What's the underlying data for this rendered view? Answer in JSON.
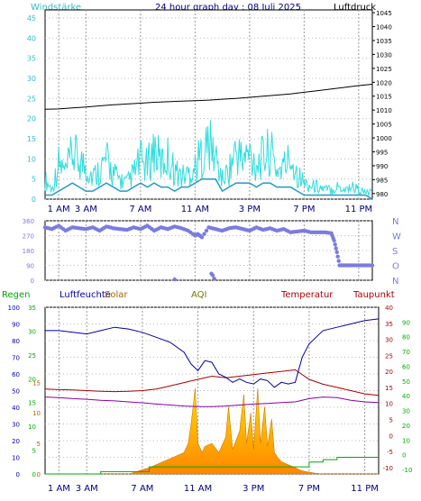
{
  "title": "24 hour graph day : 08 Juli 2025",
  "chart_data": [
    {
      "id": "wind_pressure",
      "type": "line",
      "title": "24 hour graph day : 08 Juli 2025",
      "left_axis_label": "Windstärke",
      "right_axis_label": "Luftdruck",
      "left_ticks": [
        "0",
        "5",
        "10",
        "15",
        "20",
        "25",
        "30",
        "35",
        "40",
        "45"
      ],
      "left_range": [
        0,
        47
      ],
      "right_ticks": [
        "980",
        "985",
        "990",
        "995",
        "1000",
        "1005",
        "1010",
        "1015",
        "1020",
        "1025",
        "1030",
        "1035",
        "1040",
        "1045"
      ],
      "right_range": [
        978,
        1046
      ],
      "x_hours": [
        1,
        3,
        7,
        11,
        15,
        19,
        23
      ],
      "x_ticks": [
        "1 AM",
        "3 AM",
        "7 AM",
        "11 AM",
        "3 PM",
        "7 PM",
        "11 PM"
      ],
      "x_range": [
        0,
        24
      ],
      "colors": {
        "pressure": "#000000",
        "gust": "#33dddd",
        "wind": "#2299cc"
      },
      "series": [
        {
          "key": "pressure",
          "x": [
            0,
            1,
            2,
            3,
            4,
            5,
            6,
            7,
            8,
            9,
            10,
            11,
            12,
            13,
            14,
            15,
            16,
            17,
            18,
            19,
            20,
            21,
            22,
            23,
            24
          ],
          "y": [
            1010.3,
            1010.4,
            1010.8,
            1011.1,
            1011.5,
            1011.9,
            1012.2,
            1012.5,
            1012.8,
            1013.0,
            1013.2,
            1013.4,
            1013.6,
            1013.9,
            1014.2,
            1014.6,
            1015.0,
            1015.4,
            1015.8,
            1016.4,
            1017.0,
            1017.6,
            1018.2,
            1018.8,
            1019.3
          ]
        },
        {
          "key": "gust",
          "x": [
            0,
            0.5,
            1,
            1.5,
            2,
            2.5,
            3,
            3.5,
            4,
            4.5,
            5,
            5.5,
            6,
            6.5,
            7,
            7.5,
            8,
            8.5,
            9,
            9.5,
            10,
            10.5,
            11,
            11.5,
            12,
            12.5,
            13,
            13.5,
            14,
            14.5,
            15,
            15.5,
            16,
            16.5,
            17,
            17.5,
            18,
            18.5,
            19,
            19.5,
            20,
            20.5,
            21,
            21.5,
            22,
            22.5,
            23,
            23.5,
            24
          ],
          "y": [
            6,
            3,
            11,
            8,
            14,
            12,
            10,
            7,
            9,
            12,
            8,
            6,
            5,
            8,
            12,
            10,
            16,
            11,
            13,
            9,
            7,
            8,
            10,
            14,
            17,
            13,
            6,
            9,
            15,
            12,
            14,
            11,
            13,
            15,
            9,
            10,
            13,
            8,
            5,
            4,
            4,
            3,
            3,
            4,
            3,
            4,
            3,
            2,
            2
          ]
        },
        {
          "key": "wind",
          "x": [
            0,
            0.5,
            1,
            1.5,
            2,
            2.5,
            3,
            3.5,
            4,
            4.5,
            5,
            5.5,
            6,
            6.5,
            7,
            7.5,
            8,
            8.5,
            9,
            9.5,
            10,
            10.5,
            11,
            11.5,
            12,
            12.5,
            13,
            13.5,
            14,
            14.5,
            15,
            15.5,
            16,
            16.5,
            17,
            17.5,
            18,
            18.5,
            19,
            19.5,
            20,
            20.5,
            21,
            21.5,
            22,
            22.5,
            23,
            23.5,
            24
          ],
          "y": [
            1,
            1,
            2,
            3,
            4,
            3,
            2,
            2,
            3,
            4,
            3,
            2,
            2,
            3,
            4,
            3,
            4,
            3,
            3,
            2,
            3,
            3,
            4,
            5,
            5,
            5,
            2,
            3,
            4,
            4,
            4,
            3,
            4,
            4,
            3,
            3,
            3,
            2,
            1,
            1,
            1,
            1,
            1,
            1,
            1,
            1,
            1,
            1,
            0
          ]
        }
      ]
    },
    {
      "id": "wind_direction",
      "type": "scatter",
      "left_ticks": [
        "0",
        "90",
        "180",
        "270",
        "360"
      ],
      "left_range": [
        0,
        360
      ],
      "right_labels": [
        "N",
        "W",
        "S",
        "O",
        "N"
      ],
      "color": "#7b7be0",
      "series": [
        {
          "key": "direction",
          "x": [
            0,
            0.5,
            1,
            1.5,
            2,
            2.5,
            3,
            3.5,
            4,
            4.5,
            5,
            5.5,
            6,
            6.5,
            7,
            7.5,
            8,
            8.5,
            9,
            9.5,
            10,
            10.5,
            11,
            11.2,
            11.5,
            12,
            12.5,
            13,
            13.5,
            14,
            14.5,
            15,
            15.5,
            16,
            16.5,
            17,
            17.5,
            18,
            18.5,
            19,
            19.5,
            20,
            20.5,
            21,
            21.2,
            21.4,
            21.6,
            22,
            22.5,
            23,
            23.5,
            24
          ],
          "y": [
            320,
            310,
            330,
            300,
            320,
            315,
            310,
            320,
            300,
            325,
            315,
            310,
            305,
            320,
            310,
            330,
            300,
            320,
            310,
            325,
            315,
            300,
            270,
            280,
            260,
            320,
            310,
            300,
            315,
            320,
            310,
            300,
            320,
            305,
            315,
            300,
            310,
            290,
            295,
            300,
            290,
            290,
            290,
            285,
            240,
            170,
            90,
            90,
            90,
            90,
            90,
            90
          ]
        },
        {
          "key": "direction_low",
          "x": [
            9.5,
            12.2,
            12.3,
            12.4
          ],
          "y": [
            5,
            40,
            30,
            10
          ]
        }
      ]
    },
    {
      "id": "humidity_temp_solar",
      "type": "area",
      "labels": {
        "rain": "Regen",
        "humidity": "Luftfeuchte",
        "solar": "Solar",
        "aqi": "AQI",
        "temp": "Temperatur",
        "dew": "Taupunkt"
      },
      "colors": {
        "rain": "#00aa00",
        "humidity": "#0000aa",
        "solar": "#aa6600",
        "aqi": "#777700",
        "temp": "#aa0000",
        "dew": "#aa0000",
        "dew_line": "#8800aa",
        "solar_fill_top": "#ffdd00",
        "solar_fill_bottom": "#ff8800"
      },
      "humidity_ticks": [
        "0",
        "10",
        "20",
        "30",
        "40",
        "50",
        "60",
        "70",
        "80",
        "90",
        "100"
      ],
      "humidity_range": [
        0,
        100
      ],
      "rain_ticks": [
        "0",
        "5",
        "10",
        "15",
        "20",
        "25",
        "30",
        "35"
      ],
      "rain_range": [
        0,
        35
      ],
      "solar_ticks": [
        "0",
        "5",
        "10",
        "15"
      ],
      "solar_range": [
        0,
        15
      ],
      "temp_ticks": [
        "-10",
        "-5",
        "0",
        "5",
        "10",
        "15",
        "20",
        "25",
        "30",
        "35",
        "40"
      ],
      "temp_range": [
        -12,
        40
      ],
      "dew_ticks": [
        "-10",
        "0",
        "10",
        "20",
        "30",
        "40",
        "50",
        "60",
        "70",
        "80",
        "90"
      ],
      "dew_range": [
        -13,
        100
      ],
      "x_hours": [
        1,
        3,
        7,
        11,
        15,
        19,
        23
      ],
      "x_ticks": [
        "1 AM",
        "3 AM",
        "7 AM",
        "11 AM",
        "3 PM",
        "7 PM",
        "11 PM"
      ],
      "x_range": [
        0,
        24
      ],
      "series": [
        {
          "key": "humidity",
          "x": [
            0,
            1,
            2,
            3,
            4,
            5,
            6,
            7,
            8,
            9,
            10,
            10.5,
            11,
            11.5,
            12,
            12.5,
            13,
            13.5,
            14,
            14.5,
            15,
            15.5,
            16,
            16.5,
            17,
            17.5,
            18,
            18.5,
            19,
            19.5,
            20,
            21,
            22,
            23,
            24
          ],
          "y": [
            86,
            86,
            85,
            84,
            86,
            88,
            87,
            85,
            82,
            79,
            73,
            66,
            62,
            68,
            67,
            60,
            58,
            55,
            57,
            55,
            54,
            57,
            56,
            52,
            55,
            54,
            55,
            70,
            78,
            82,
            86,
            88,
            90,
            92,
            93
          ]
        },
        {
          "key": "temperature",
          "x": [
            0,
            1,
            2,
            3,
            4,
            5,
            6,
            7,
            8,
            9,
            10,
            11,
            12,
            13,
            14,
            15,
            16,
            17,
            18,
            19,
            20,
            21,
            22,
            23,
            24
          ],
          "y": [
            14.5,
            14.3,
            14.2,
            14.0,
            13.8,
            13.7,
            13.8,
            14.0,
            14.5,
            15.5,
            16.5,
            17.5,
            18.5,
            18.0,
            18.5,
            19.0,
            19.5,
            20.0,
            20.5,
            17.5,
            16.0,
            15.0,
            14.0,
            13.0,
            12.5
          ]
        },
        {
          "key": "dewpoint",
          "x": [
            0,
            1,
            2,
            3,
            4,
            5,
            6,
            7,
            8,
            9,
            10,
            11,
            12,
            13,
            14,
            15,
            16,
            17,
            18,
            19,
            20,
            21,
            22,
            23,
            24
          ],
          "y": [
            12.0,
            11.8,
            11.5,
            11.3,
            11.0,
            10.8,
            10.5,
            10.2,
            9.8,
            9.5,
            9.2,
            9.0,
            9.0,
            9.2,
            9.5,
            9.8,
            10.0,
            10.3,
            10.5,
            11.5,
            12.0,
            11.8,
            11.0,
            10.5,
            10.3
          ]
        },
        {
          "key": "solar",
          "x": [
            0,
            6,
            6.5,
            7,
            7.5,
            8,
            8.5,
            9,
            9.5,
            10,
            10.3,
            10.5,
            10.8,
            11,
            11.3,
            11.5,
            12,
            12.5,
            13,
            13.2,
            13.5,
            14,
            14.3,
            14.5,
            14.8,
            15,
            15.3,
            15.5,
            15.8,
            16,
            16.3,
            16.5,
            16.8,
            17,
            17.5,
            18,
            18.5,
            19,
            19.5,
            20,
            24
          ],
          "y": [
            0,
            0,
            0.3,
            0.7,
            1.0,
            1.5,
            2.0,
            2.5,
            3.0,
            3.5,
            5.0,
            8.0,
            14.0,
            5.0,
            3.5,
            4.5,
            5.0,
            3.5,
            6.0,
            11.0,
            4.0,
            7.0,
            13.0,
            5.0,
            10.0,
            4.0,
            14.0,
            5.0,
            11.0,
            4.5,
            9.0,
            3.5,
            2.5,
            2.0,
            1.5,
            1.0,
            0.5,
            0.3,
            0.1,
            0,
            0
          ]
        },
        {
          "key": "rain",
          "x": [
            0,
            3.5,
            4,
            7,
            7.5,
            8,
            9.5,
            10,
            18.5,
            19,
            20,
            21,
            21.5,
            24
          ],
          "y": [
            0,
            0,
            0.5,
            0.5,
            1.5,
            1.5,
            1.5,
            1.5,
            1.5,
            2.5,
            3.0,
            3.5,
            3.5,
            3.5
          ]
        }
      ]
    }
  ]
}
